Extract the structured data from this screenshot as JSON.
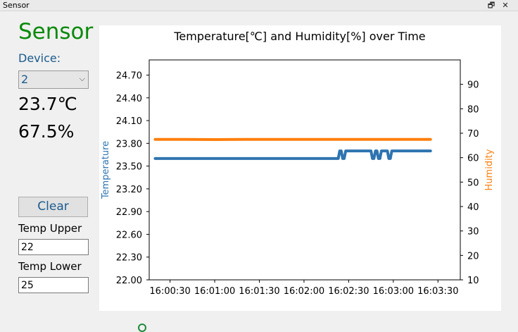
{
  "window": {
    "title": "Sensor",
    "restore_icon": "restore-icon",
    "close_icon": "close-icon"
  },
  "left": {
    "heading": "Sensor",
    "device_label": "Device:",
    "device_value": "2",
    "temperature": "23.7℃",
    "humidity": "67.5%",
    "clear_label": "Clear",
    "temp_upper_label": "Temp Upper",
    "temp_upper_value": "22",
    "temp_lower_label": "Temp Lower",
    "temp_lower_value": "25"
  },
  "colors": {
    "temperature": "#2e74b0",
    "humidity": "#ff7f0e",
    "heading": "#0a8a0a"
  },
  "chart_data": {
    "type": "line",
    "title": "Temperature[℃] and Humidity[%] over Time",
    "xlabel": "",
    "y_left_label": "Temperature",
    "y_right_label": "Humidity",
    "x_ticks": [
      "16:00:30",
      "16:01:00",
      "16:01:30",
      "16:02:00",
      "16:02:30",
      "16:03:00",
      "16:03:30"
    ],
    "y_left_ticks": [
      "22.00",
      "22.30",
      "22.60",
      "22.90",
      "23.20",
      "23.50",
      "23.80",
      "24.10",
      "24.40",
      "24.70"
    ],
    "y_right_ticks": [
      "10",
      "20",
      "30",
      "40",
      "50",
      "60",
      "70",
      "80",
      "90"
    ],
    "y_left_lim": [
      22.0,
      24.9
    ],
    "y_right_lim": [
      10,
      100
    ],
    "x_lim_seconds": [
      16,
      225
    ],
    "grid": false,
    "series": [
      {
        "name": "Temperature",
        "axis": "left",
        "x_seconds": [
          20,
          143,
          144,
          145,
          146,
          147,
          148,
          150,
          165,
          166,
          167,
          168,
          169,
          170,
          171,
          172,
          176,
          177,
          178,
          179,
          180,
          205
        ],
        "values": [
          23.6,
          23.6,
          23.7,
          23.7,
          23.6,
          23.6,
          23.7,
          23.7,
          23.7,
          23.6,
          23.6,
          23.7,
          23.7,
          23.6,
          23.6,
          23.7,
          23.7,
          23.6,
          23.6,
          23.7,
          23.7,
          23.7
        ]
      },
      {
        "name": "Humidity",
        "axis": "right",
        "x_seconds": [
          20,
          40,
          60,
          80,
          100,
          120,
          140,
          160,
          180,
          205
        ],
        "values": [
          67.5,
          67.5,
          67.4,
          67.5,
          67.5,
          67.5,
          67.5,
          67.5,
          67.5,
          67.5
        ]
      }
    ]
  }
}
